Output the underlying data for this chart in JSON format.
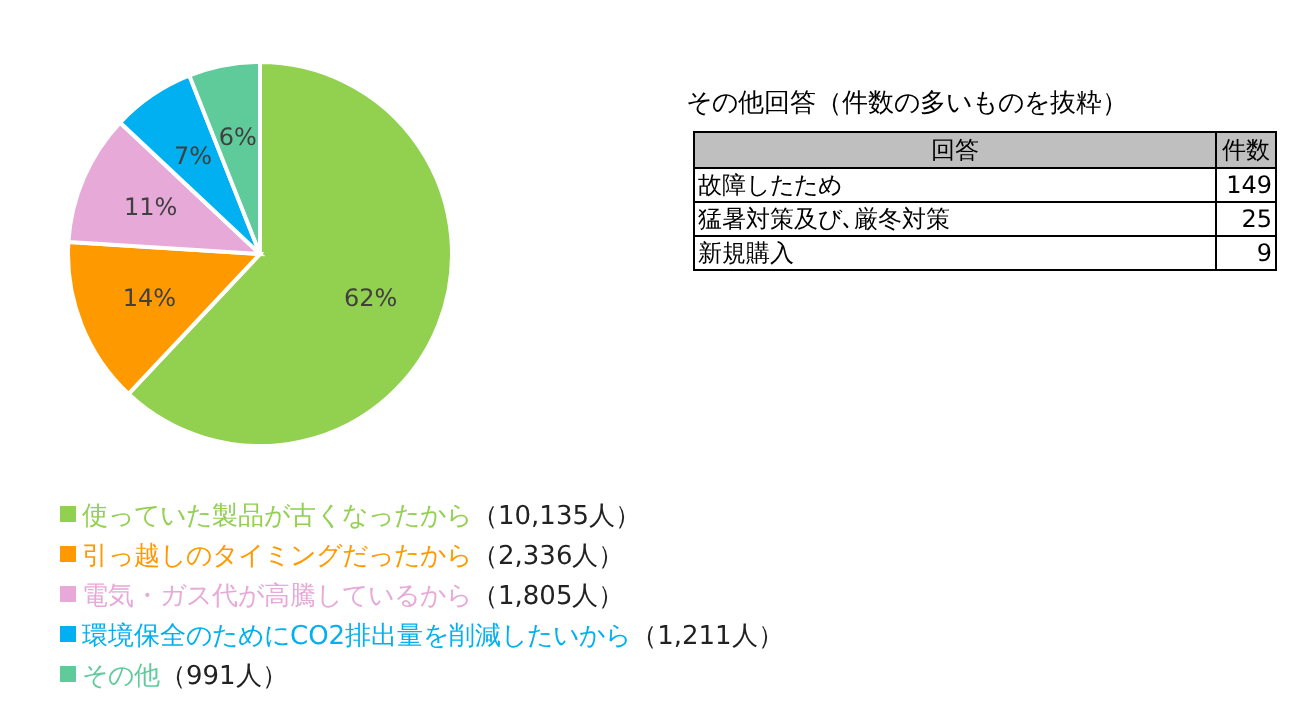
{
  "chart_data": [
    {
      "type": "pie",
      "categories": [
        "使っていた製品が古くなったから（10,135人）",
        "引っ越しのタイミングだったから（2,336人）",
        "電気・ガス代が高騰しているから（1,805人）",
        "環境保全のためにCO2排出量を削減したいから（1,211人）",
        "その他（991人）"
      ],
      "values": [
        62,
        14,
        11,
        7,
        6
      ],
      "colors": [
        "#92d050",
        "#ff9900",
        "#e6a9d8",
        "#00b0f0",
        "#5fcb9b"
      ],
      "value_labels": [
        "62%",
        "14%",
        "11%",
        "7%",
        "6%"
      ],
      "legend": "bottom"
    },
    {
      "type": "other",
      "title": "その他回答（件数の多いものを抜粋）",
      "xlabel": "回答",
      "ylabel": "件数",
      "categories": [
        "故障したため",
        "猛暑対策及び､厳冬対策",
        "新規購入"
      ],
      "values": [
        149,
        25,
        9
      ],
      "data_labels": true
    }
  ]
}
